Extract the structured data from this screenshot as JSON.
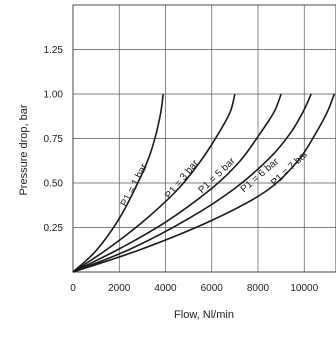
{
  "chart_data": {
    "type": "line",
    "xlabel": "Flow, Nl/min",
    "ylabel": "Pressure drop, bar",
    "xlim": [
      0,
      12000
    ],
    "ylim": [
      0,
      1.5
    ],
    "x_ticks": [
      0,
      2000,
      4000,
      6000,
      8000,
      10000
    ],
    "x_tick_labels": [
      "0",
      "2000",
      "4000",
      "6000",
      "8000",
      "10000"
    ],
    "y_ticks": [
      0.25,
      0.5,
      0.75,
      1.0,
      1.25
    ],
    "y_tick_labels": [
      "0.25",
      "0.50",
      "0.75",
      "1.00",
      "1.25"
    ],
    "grid": true,
    "series": [
      {
        "name": "P1 = 1 bar",
        "x": [
          0,
          1000,
          2000,
          2800,
          3300,
          3600,
          3800,
          3900
        ],
        "y": [
          0,
          0.12,
          0.3,
          0.5,
          0.65,
          0.78,
          0.9,
          1.0
        ]
      },
      {
        "name": "P1 = 3 bar",
        "x": [
          0,
          1500,
          3000,
          4500,
          5500,
          6300,
          6800,
          7000
        ],
        "y": [
          0,
          0.13,
          0.28,
          0.46,
          0.62,
          0.78,
          0.9,
          1.0
        ]
      },
      {
        "name": "P1 = 5 bar",
        "x": [
          0,
          2000,
          4000,
          6000,
          7200,
          8100,
          8700,
          9000
        ],
        "y": [
          0,
          0.13,
          0.28,
          0.47,
          0.62,
          0.78,
          0.9,
          1.0
        ]
      },
      {
        "name": "P1 = 6 bar",
        "x": [
          0,
          2500,
          5000,
          7000,
          8500,
          9400,
          9950,
          10300
        ],
        "y": [
          0,
          0.13,
          0.3,
          0.47,
          0.64,
          0.78,
          0.9,
          1.0
        ]
      },
      {
        "name": "P1 = 7 bar",
        "x": [
          0,
          3000,
          6000,
          8300,
          9700,
          10500,
          11000,
          11300
        ],
        "y": [
          0,
          0.13,
          0.29,
          0.45,
          0.62,
          0.78,
          0.9,
          1.0
        ]
      }
    ],
    "curve_labels": [
      {
        "text": "P1 = 1 bar",
        "x": 2750,
        "y": 0.48
      },
      {
        "text": "P1 = 3 bar",
        "x": 4800,
        "y": 0.51
      },
      {
        "text": "P1 = 5 bar",
        "x": 6300,
        "y": 0.53
      },
      {
        "text": "P1 = 6 bar",
        "x": 8150,
        "y": 0.53
      },
      {
        "text": "P1 = 7 bar",
        "x": 9450,
        "y": 0.57
      }
    ]
  }
}
